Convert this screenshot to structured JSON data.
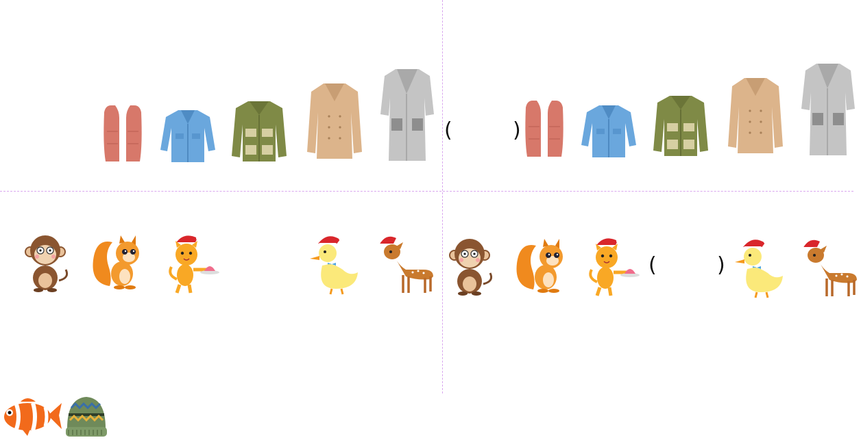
{
  "clothing_row_left": [
    "vest-icon",
    "denim-jacket-icon",
    "field-jacket-icon",
    "trench-coat-icon",
    "long-grey-coat-icon"
  ],
  "clothing_row_right": [
    "vest-icon",
    "denim-jacket-icon",
    "field-jacket-icon",
    "trench-coat-icon",
    "long-grey-coat-icon"
  ],
  "animal_row_left": [
    "monkey-icon",
    "squirrel-icon",
    "cat-with-santa-hat-icon",
    "duck-with-santa-hat-icon",
    "deer-with-santa-hat-icon"
  ],
  "animal_row_right": [
    "monkey-icon",
    "squirrel-icon",
    "cat-with-santa-hat-icon",
    "duck-with-santa-hat-icon",
    "deer-with-santa-hat-icon"
  ],
  "bottom_left_items": [
    "clownfish-icon",
    "knit-beanie-icon"
  ],
  "answer_blanks": {
    "clothes": {
      "open": "(",
      "close": ")"
    },
    "animals": {
      "open": "(",
      "close": ")"
    }
  },
  "colors": {
    "divider": "#d9a6ef",
    "vest": "#d7786a",
    "denim": "#6aa7dd",
    "field_jacket": "#7f8a46",
    "trench_coat": "#dcb48b",
    "grey_coat": "#c4c4c4"
  }
}
